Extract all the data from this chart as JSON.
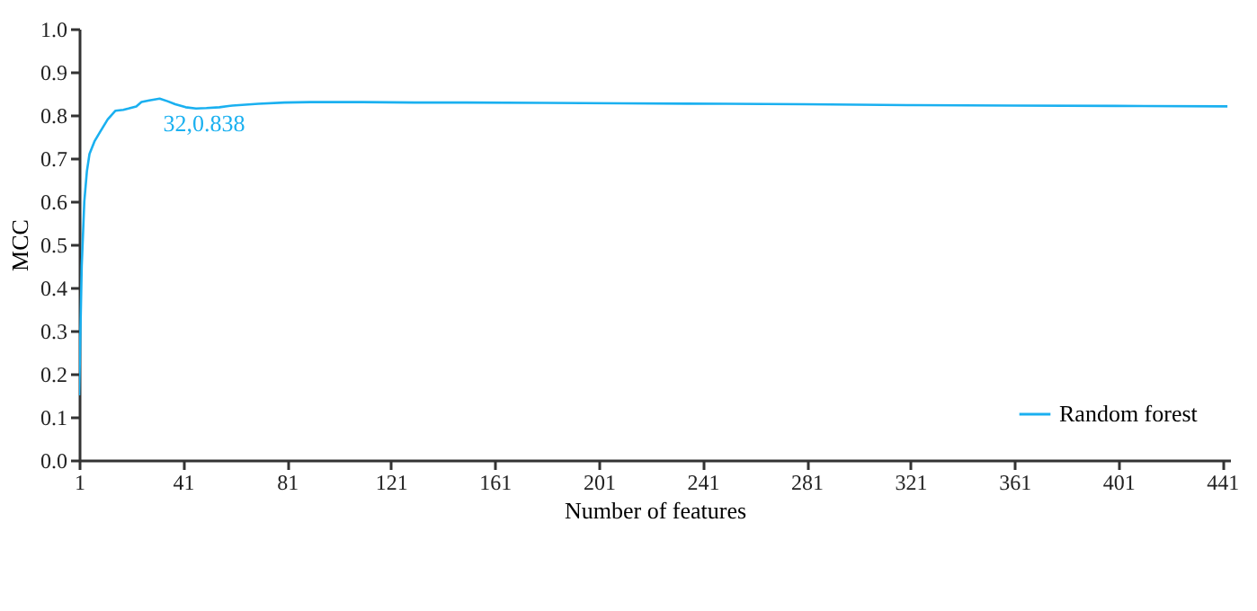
{
  "chart_data": {
    "type": "line",
    "xlabel": "Number of features",
    "ylabel": "MCC",
    "x": [
      1,
      2,
      3,
      4,
      5,
      7,
      9,
      12,
      15,
      18,
      20,
      23,
      25,
      28,
      32,
      35,
      38,
      42,
      46,
      50,
      55,
      60,
      70,
      80,
      90,
      110,
      130,
      150,
      180,
      210,
      250,
      280,
      320,
      360,
      400,
      443
    ],
    "series": [
      {
        "name": "Random forest",
        "color": "#1ab0f0",
        "values": [
          0.15,
          0.45,
          0.6,
          0.67,
          0.71,
          0.74,
          0.76,
          0.79,
          0.81,
          0.812,
          0.815,
          0.82,
          0.83,
          0.834,
          0.838,
          0.832,
          0.825,
          0.818,
          0.815,
          0.816,
          0.818,
          0.822,
          0.826,
          0.829,
          0.83,
          0.83,
          0.829,
          0.829,
          0.828,
          0.827,
          0.826,
          0.825,
          0.823,
          0.822,
          0.821,
          0.82
        ]
      }
    ],
    "xlim": [
      1,
      444
    ],
    "xticks": [
      1,
      41,
      81,
      121,
      161,
      201,
      241,
      281,
      321,
      361,
      401,
      441
    ],
    "ylim": [
      0,
      1
    ],
    "yticks": [
      {
        "value": 0,
        "label": "0.0"
      },
      0.1,
      0.2,
      0.3,
      0.4,
      0.5,
      0.6,
      0.7,
      0.8,
      0.9,
      {
        "value": 1,
        "label": "1.0"
      }
    ],
    "annotations": [
      {
        "text": "32,0.838",
        "x": 32,
        "y": 0.838
      }
    ],
    "legend": "bottom right",
    "grid": false
  }
}
